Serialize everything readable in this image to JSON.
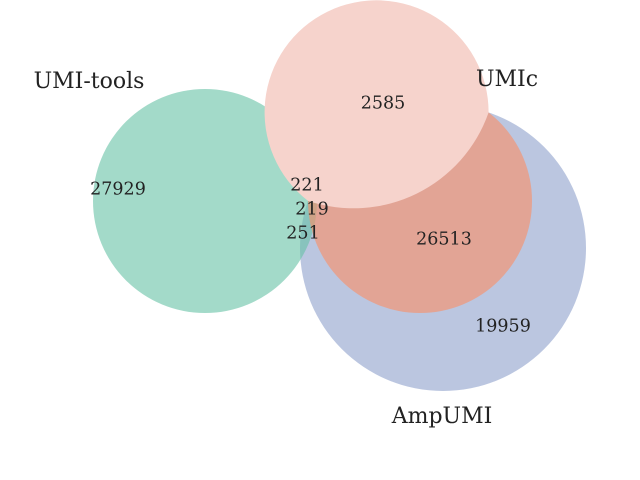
{
  "colors": {
    "umi_tools": "#66c2a5",
    "umic": "#fc8d62",
    "ampumi": "#8da0cb",
    "umic_ampumi_overlap": "#f6d3cc",
    "alpha": 0.6
  },
  "sets": {
    "umi_tools": "UMI-tools",
    "umic": "UMIc",
    "ampumi": "AmpUMI"
  },
  "regions": {
    "umi_tools_only": "27929",
    "umic_only": "2585",
    "ampumi_only": "19959",
    "umic_ampumi": "26513",
    "umi_tools_umic": "221",
    "all_three": "219",
    "umi_tools_ampumi": "251"
  }
}
